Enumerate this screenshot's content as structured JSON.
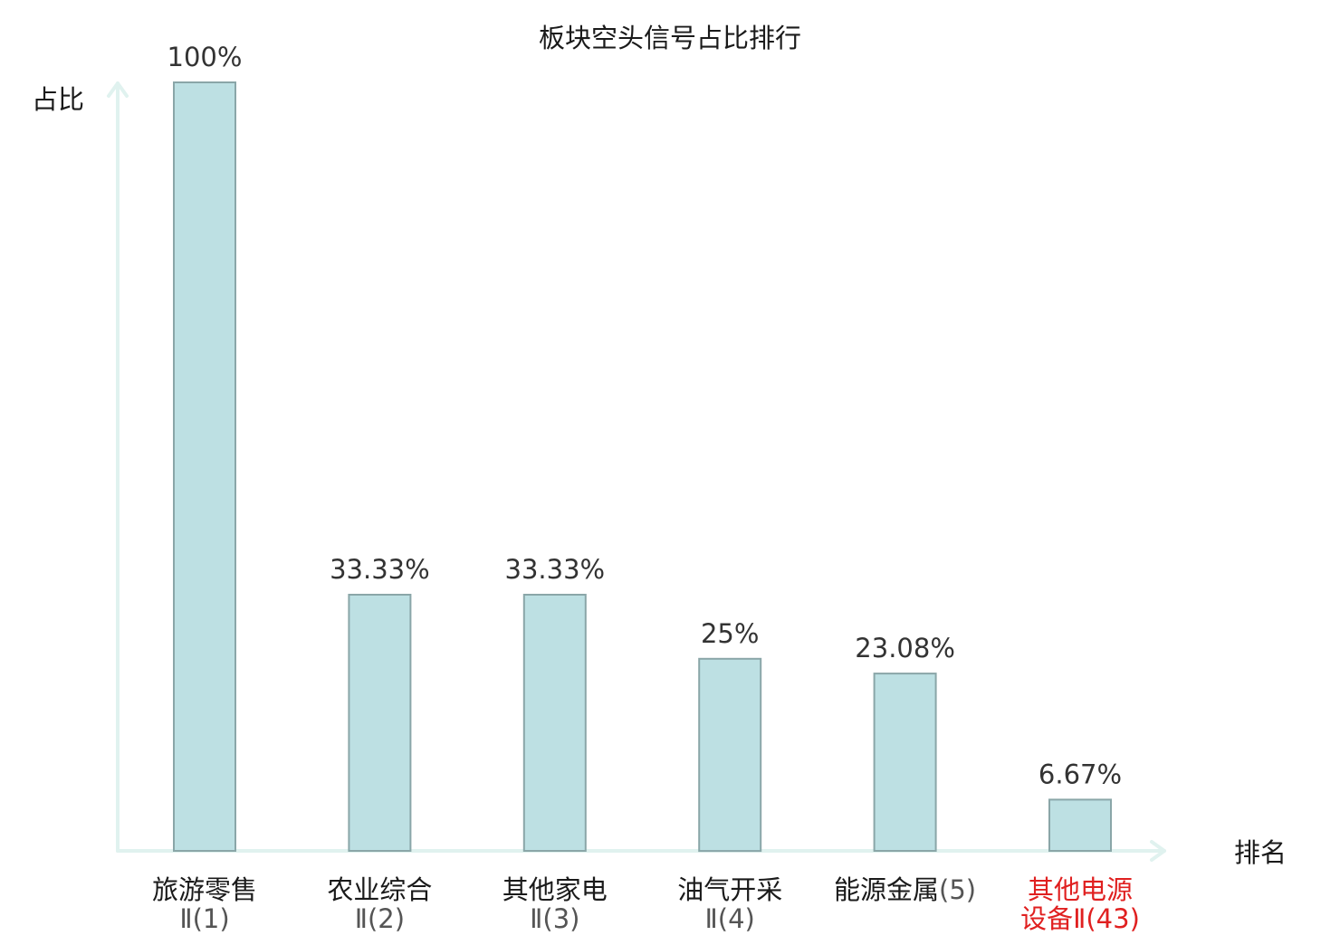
{
  "chart_data": {
    "type": "bar",
    "title": "板块空头信号占比排行",
    "ylabel": "占比",
    "xlabel": "排名",
    "ylim": [
      0,
      100
    ],
    "grid": false,
    "legend": "none",
    "categories": [
      {
        "line1": "旅游零售",
        "line2": "Ⅱ(1)",
        "highlight": false
      },
      {
        "line1": "农业综合",
        "line2": "Ⅱ(2)",
        "highlight": false
      },
      {
        "line1": "其他家电",
        "line2": "Ⅱ(3)",
        "highlight": false
      },
      {
        "line1": "油气开采",
        "line2": "Ⅱ(4)",
        "highlight": false
      },
      {
        "line1": "能源金属",
        "line1_suffix": "(5)",
        "line2": "",
        "highlight": false
      },
      {
        "line1": "其他电源",
        "line2": "设备Ⅱ(43)",
        "highlight": true
      }
    ],
    "values": [
      100,
      33.33,
      33.33,
      25,
      23.08,
      6.67
    ],
    "value_labels": [
      "100%",
      "33.33%",
      "33.33%",
      "25%",
      "23.08%",
      "6.67%"
    ]
  },
  "colors": {
    "bar_fill": "#bde0e3",
    "bar_stroke": "#8aa6a8",
    "axis": "#e0f2ef",
    "text": "#1a1a1a",
    "sub_text": "#555555",
    "highlight": "#e02020"
  }
}
